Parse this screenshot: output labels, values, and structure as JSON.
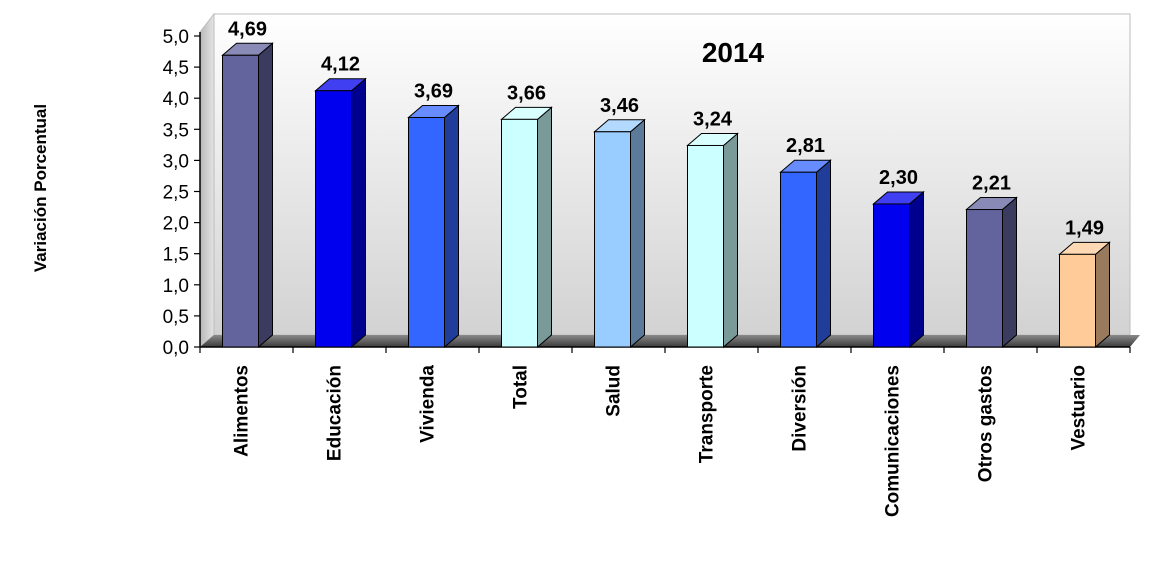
{
  "chart_data": {
    "type": "bar",
    "title": "2014",
    "xlabel": "",
    "ylabel": "Variación Porcentual",
    "ylim": [
      0,
      5
    ],
    "ytick_step": 0.5,
    "yticks": [
      "0,0",
      "0,5",
      "1,0",
      "1,5",
      "2,0",
      "2,5",
      "3,0",
      "3,5",
      "4,0",
      "4,5",
      "5,0"
    ],
    "grid": false,
    "style": "3d",
    "categories": [
      "Alimentos",
      "Educación",
      "Vivienda",
      "Total",
      "Salud",
      "Transporte",
      "Diversión",
      "Comunicaciones",
      "Otros gastos",
      "Vestuario"
    ],
    "values": [
      4.69,
      4.12,
      3.69,
      3.66,
      3.46,
      3.24,
      2.81,
      2.3,
      2.21,
      1.49
    ],
    "value_labels": [
      "4,69",
      "4,12",
      "3,69",
      "3,66",
      "3,46",
      "3,24",
      "2,81",
      "2,30",
      "2,21",
      "1,49"
    ],
    "bar_colors": [
      "#63639e",
      "#0000ee",
      "#3366ff",
      "#ccffff",
      "#99ccff",
      "#ccffff",
      "#3366ff",
      "#0000ee",
      "#63639e",
      "#ffcc99"
    ]
  }
}
